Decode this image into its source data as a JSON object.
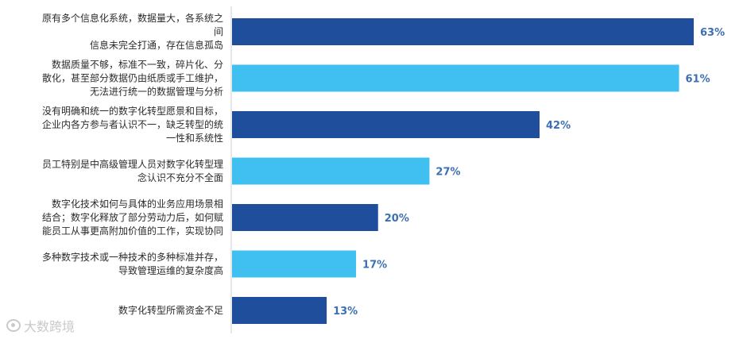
{
  "chart_data": {
    "type": "bar",
    "orientation": "horizontal",
    "categories": [
      [
        "原有多个信息化系统，数据量大，各系统之",
        "间",
        "信息未完全打通，存在信息孤岛"
      ],
      [
        "数据质量不够，标准不一致，碎片化、分",
        "散化，甚至部分数据仍由纸质或手工维护，",
        "无法进行统一的数据管理与分析"
      ],
      [
        "没有明确和统一的数字化转型愿景和目标，",
        "企业内各方参与者认识不一，缺乏转型的统",
        "一性和系统性"
      ],
      [
        "员工特别是中高级管理人员对数字化转型理",
        "念认识不充分不全面"
      ],
      [
        "数字化技术如何与具体的业务应用场景相",
        "结合；数字化释放了部分劳动力后，如何赋",
        "能员工从事更高附加价值的工作，实现协同"
      ],
      [
        "多种数字技术或一种技术的多种标准并存，",
        "导致管理运维的复杂度高"
      ],
      [
        "数字化转型所需资金不足"
      ]
    ],
    "values": [
      63,
      61,
      42,
      27,
      20,
      17,
      13
    ],
    "value_labels": [
      "63%",
      "61%",
      "42%",
      "27%",
      "20%",
      "17%",
      "13%"
    ],
    "xlim": [
      0,
      63
    ],
    "bar_colors": [
      "#1f4e9c",
      "#40c0f0",
      "#1f4e9c",
      "#40c0f0",
      "#1f4e9c",
      "#40c0f0",
      "#1f4e9c"
    ]
  },
  "watermark": {
    "icon": "camera-icon",
    "text": "大数跨境"
  }
}
